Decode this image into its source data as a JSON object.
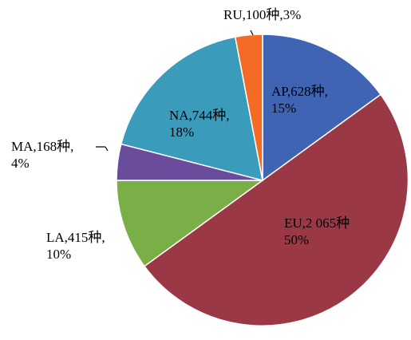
{
  "chart_data": {
    "type": "pie",
    "slices": [
      {
        "code": "AP",
        "count": "628",
        "percent": "15%",
        "value": 15,
        "color": "#4064b4",
        "line1": "AP,628种,",
        "line2": "15%"
      },
      {
        "code": "EU",
        "count": "2 065",
        "percent": "50%",
        "value": 50,
        "color": "#9b3846",
        "line1": "EU,2 065种",
        "line2": "50%"
      },
      {
        "code": "LA",
        "count": "415",
        "percent": "10%",
        "value": 10,
        "color": "#7aaf47",
        "line1": "LA,415种,",
        "line2": "10%"
      },
      {
        "code": "MA",
        "count": "168",
        "percent": "4%",
        "value": 4,
        "color": "#6a4c9c",
        "line1": "MA,168种,",
        "line2": "4%"
      },
      {
        "code": "NA",
        "count": "744",
        "percent": "18%",
        "value": 18,
        "color": "#3a9bbb",
        "line1": "NA,744种,",
        "line2": "18%"
      },
      {
        "code": "RU",
        "count": "100",
        "percent": "3%",
        "value": 3,
        "color": "#f36b25",
        "line1": "RU,100种,3%",
        "line2": ""
      }
    ]
  }
}
